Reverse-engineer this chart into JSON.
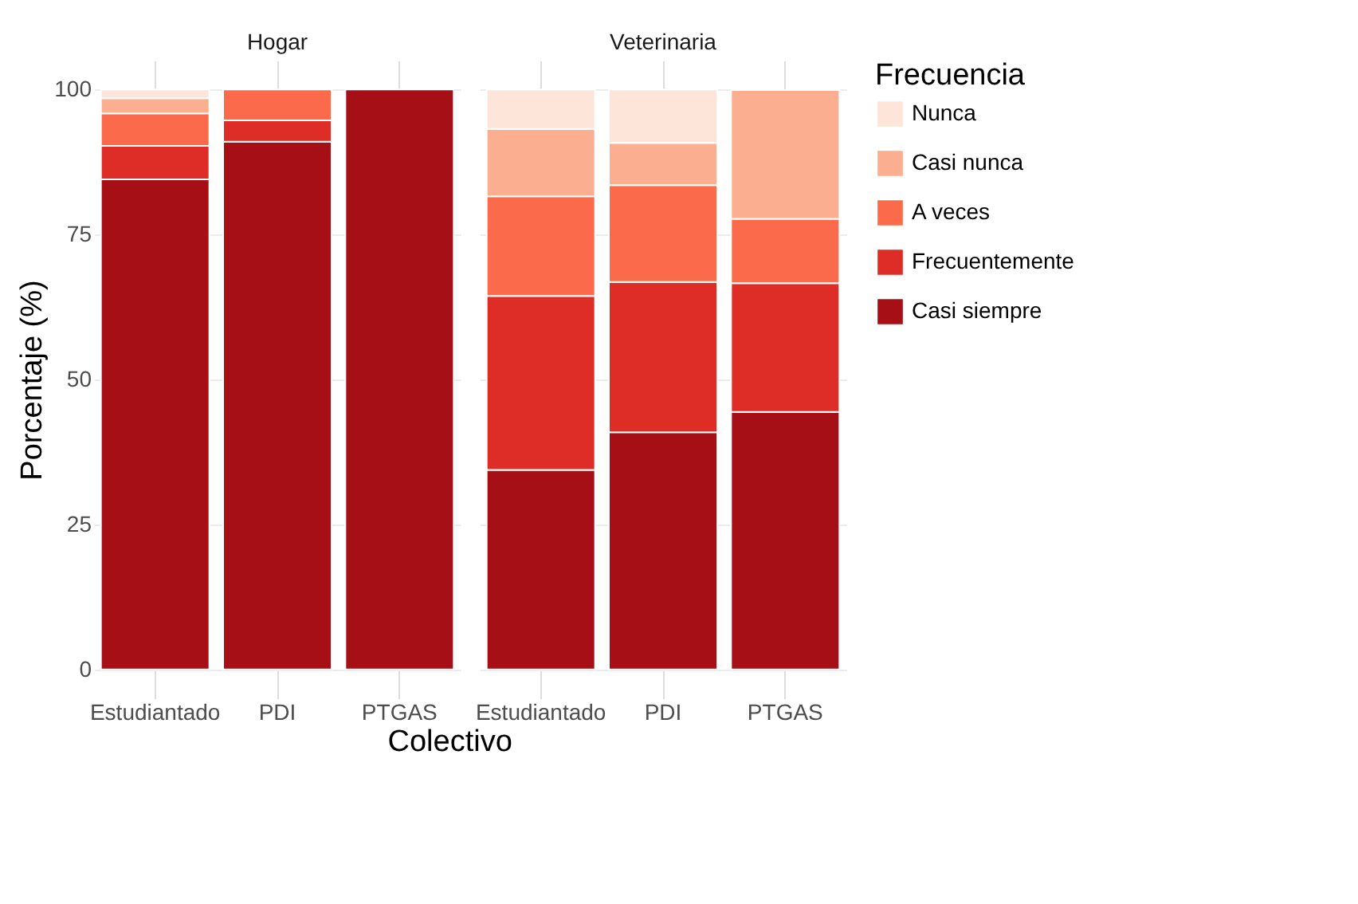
{
  "chart_data": [
    {
      "type": "bar",
      "title": "Hogar",
      "ylabel": "Porcentaje (%)",
      "xlabel": "Colectivo",
      "stacked": true,
      "categories": [
        "Estudiantado",
        "PDI",
        "PTGAS"
      ],
      "ylim": [
        -5,
        105
      ],
      "yticks": [
        0,
        25,
        50,
        75,
        100
      ],
      "grid": true,
      "legend": "right",
      "series": [
        {
          "name": "Casi siempre",
          "color": "#a50f15",
          "values": [
            84.5,
            91.0,
            100
          ]
        },
        {
          "name": "Frecuentemente",
          "color": "#de2d26",
          "values": [
            5.8,
            3.7,
            null
          ]
        },
        {
          "name": "A veces",
          "color": "#fb6a4a",
          "values": [
            5.6,
            5.3,
            null
          ]
        },
        {
          "name": "Casi nunca",
          "color": "#fcae91",
          "values": [
            2.6,
            null,
            null
          ]
        },
        {
          "name": "Nunca",
          "color": "#fee5d9",
          "values": [
            1.5,
            null,
            null
          ]
        }
      ]
    },
    {
      "type": "bar",
      "title": "Veterinaria",
      "legend_title": "Frecuencia",
      "stacked": true,
      "categories": [
        "Estudiantado",
        "PDI",
        "PTGAS"
      ],
      "ylim": [
        -5,
        105
      ],
      "yticks": [
        0,
        25,
        50,
        75,
        100
      ],
      "grid": true,
      "legend": "right",
      "tick_labels": "x",
      "series": [
        {
          "name": "Casi siempre",
          "color": "#a50f15",
          "values": [
            34.4,
            40.9,
            44.4
          ]
        },
        {
          "name": "Frecuentemente",
          "color": "#de2d26",
          "values": [
            30.0,
            25.9,
            22.2
          ]
        },
        {
          "name": "A veces",
          "color": "#fb6a4a",
          "values": [
            17.2,
            16.7,
            11.1
          ]
        },
        {
          "name": "Casi nunca",
          "color": "#fcae91",
          "values": [
            11.6,
            7.3,
            22.2
          ]
        },
        {
          "name": "Nunca",
          "color": "#fee5d9",
          "values": [
            6.8,
            9.2,
            null
          ]
        }
      ]
    }
  ]
}
